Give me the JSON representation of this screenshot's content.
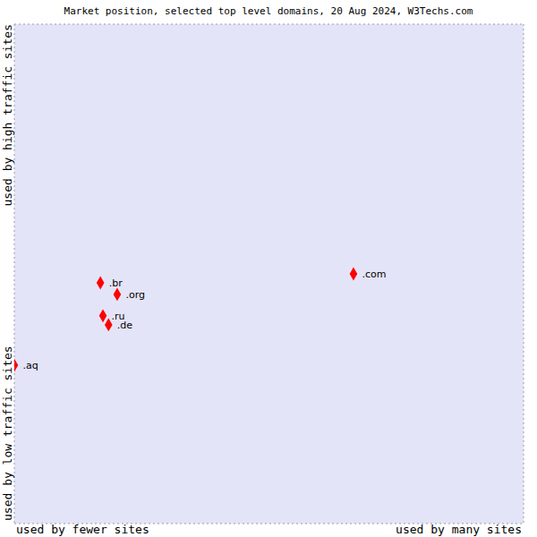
{
  "chart_data": {
    "type": "scatter",
    "title": "Market position, selected top level domains, 20 Aug 2024, W3Techs.com",
    "x_axis_labels": {
      "low": "used by fewer sites",
      "high": "used by many sites"
    },
    "y_axis_labels": {
      "low": "used by low traffic sites",
      "high": "used by high traffic sites"
    },
    "points": [
      {
        "label": ".com",
        "x": 6.66,
        "y": 5.0
      },
      {
        "label": ".br",
        "x": 1.69,
        "y": 4.82
      },
      {
        "label": ".org",
        "x": 2.02,
        "y": 4.59
      },
      {
        "label": ".ru",
        "x": 1.74,
        "y": 4.16
      },
      {
        "label": ".de",
        "x": 1.85,
        "y": 3.98
      },
      {
        "label": ".aq",
        "x": 0,
        "y": 3.17
      }
    ],
    "color": "#ff0000",
    "marker": "diamond",
    "xlim": [
      0,
      10
    ],
    "ylim": [
      0,
      10
    ],
    "xticks": [
      0,
      1,
      2,
      3,
      4,
      5,
      6,
      7,
      8,
      9,
      10
    ],
    "yticks": [
      0,
      1,
      2,
      3,
      4,
      5,
      6,
      7,
      8,
      9,
      10
    ],
    "grid": true,
    "tick_labels": false
  }
}
